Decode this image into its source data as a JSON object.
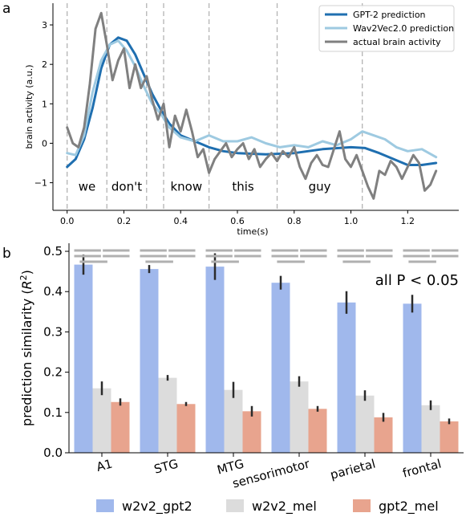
{
  "panel_labels": {
    "a": "a",
    "b": "b"
  },
  "chart_data": [
    {
      "type": "line",
      "xlabel": "time(s)",
      "ylabel": "brain activity (a.u.)",
      "xlim": [
        -0.05,
        1.38
      ],
      "ylim": [
        -1.7,
        3.55
      ],
      "xticks": [
        "0.0",
        "0.2",
        "0.4",
        "0.6",
        "0.8",
        "1.0",
        "1.2"
      ],
      "xtick_values": [
        0,
        0.2,
        0.4,
        0.6,
        0.8,
        1.0,
        1.2
      ],
      "yticks": [
        "−1",
        "0",
        "1",
        "2",
        "3"
      ],
      "ytick_values": [
        -1,
        0,
        1,
        2,
        3
      ],
      "legend_position": "top-right",
      "word_boundaries": [
        0,
        0.14,
        0.28,
        0.34,
        0.5,
        0.74,
        1.04
      ],
      "words": [
        {
          "text": "we",
          "x": 0.07
        },
        {
          "text": "don't",
          "x": 0.21
        },
        {
          "text": "know",
          "x": 0.42
        },
        {
          "text": "this",
          "x": 0.62
        },
        {
          "text": "guy",
          "x": 0.89
        }
      ],
      "series": [
        {
          "name": "GPT-2 prediction",
          "color": "#1f6fb0",
          "x": [
            0,
            0.03,
            0.06,
            0.09,
            0.12,
            0.15,
            0.18,
            0.21,
            0.24,
            0.27,
            0.3,
            0.33,
            0.36,
            0.4,
            0.45,
            0.5,
            0.55,
            0.6,
            0.7,
            0.8,
            0.9,
            1.0,
            1.05,
            1.1,
            1.15,
            1.2,
            1.25,
            1.3
          ],
          "y": [
            -0.6,
            -0.4,
            0.1,
            0.9,
            1.9,
            2.5,
            2.68,
            2.6,
            2.25,
            1.75,
            1.25,
            0.85,
            0.5,
            0.2,
            0.05,
            -0.1,
            -0.2,
            -0.25,
            -0.28,
            -0.25,
            -0.15,
            -0.1,
            -0.12,
            -0.25,
            -0.4,
            -0.55,
            -0.55,
            -0.5
          ]
        },
        {
          "name": "Wav2Vec2.0 prediction",
          "color": "#9ecae1",
          "x": [
            0,
            0.03,
            0.06,
            0.09,
            0.12,
            0.15,
            0.18,
            0.21,
            0.24,
            0.27,
            0.3,
            0.33,
            0.36,
            0.4,
            0.45,
            0.5,
            0.55,
            0.6,
            0.65,
            0.7,
            0.75,
            0.8,
            0.85,
            0.9,
            0.95,
            1.0,
            1.04,
            1.08,
            1.12,
            1.16,
            1.2,
            1.25,
            1.3
          ],
          "y": [
            -0.25,
            -0.3,
            0.2,
            1.3,
            2.1,
            2.5,
            2.6,
            2.35,
            1.95,
            1.45,
            1.0,
            0.75,
            0.4,
            0.15,
            0.05,
            0.2,
            0.05,
            0.05,
            0.15,
            0.0,
            -0.1,
            -0.05,
            -0.1,
            0.05,
            -0.05,
            0.1,
            0.3,
            0.2,
            0.1,
            -0.1,
            -0.2,
            -0.15,
            -0.35
          ]
        },
        {
          "name": "actual brain activity",
          "color": "#808080",
          "x": [
            0,
            0.02,
            0.04,
            0.06,
            0.08,
            0.1,
            0.12,
            0.14,
            0.16,
            0.18,
            0.2,
            0.22,
            0.24,
            0.26,
            0.28,
            0.3,
            0.32,
            0.34,
            0.36,
            0.38,
            0.4,
            0.42,
            0.44,
            0.46,
            0.48,
            0.5,
            0.52,
            0.54,
            0.56,
            0.58,
            0.6,
            0.62,
            0.64,
            0.66,
            0.68,
            0.7,
            0.72,
            0.74,
            0.76,
            0.78,
            0.8,
            0.82,
            0.84,
            0.86,
            0.88,
            0.9,
            0.92,
            0.94,
            0.96,
            0.98,
            1.0,
            1.02,
            1.04,
            1.06,
            1.08,
            1.1,
            1.12,
            1.14,
            1.16,
            1.18,
            1.2,
            1.22,
            1.24,
            1.26,
            1.28,
            1.3
          ],
          "y": [
            0.4,
            0.0,
            -0.1,
            0.4,
            1.5,
            2.9,
            3.3,
            2.5,
            1.6,
            2.1,
            2.4,
            1.4,
            2.0,
            1.4,
            1.7,
            1.1,
            0.6,
            1.0,
            -0.1,
            0.7,
            0.3,
            0.85,
            0.3,
            -0.35,
            -0.15,
            -0.75,
            -0.4,
            -0.2,
            0.0,
            -0.35,
            -0.15,
            0.0,
            -0.4,
            -0.15,
            -0.6,
            -0.4,
            -0.25,
            -0.45,
            -0.2,
            -0.35,
            -0.1,
            -0.6,
            -0.9,
            -0.5,
            -0.3,
            -0.55,
            -0.6,
            -0.15,
            0.3,
            -0.4,
            -0.6,
            -0.3,
            -0.7,
            -1.1,
            -1.4,
            -0.7,
            -0.8,
            -0.45,
            -0.6,
            -0.9,
            -0.6,
            -0.3,
            -0.5,
            -1.2,
            -1.05,
            -0.7
          ]
        }
      ]
    },
    {
      "type": "bar",
      "categories": [
        "A1",
        "STG",
        "MTG",
        "sensorimotor",
        "parietal",
        "frontal"
      ],
      "ylabel": "prediction similarity (R²)",
      "ylabel_main": "prediction similarity (",
      "ylabel_r": "R",
      "ylabel_sup": "2",
      "ylabel_close": ")",
      "ylim": [
        0,
        0.52
      ],
      "yticks": [
        "0.0",
        "0.1",
        "0.2",
        "0.3",
        "0.4",
        "0.5"
      ],
      "ytick_values": [
        0,
        0.1,
        0.2,
        0.3,
        0.4,
        0.5
      ],
      "annotation": "all P < 0.05",
      "legend_position": "bottom",
      "series": [
        {
          "name": "w2v2_gpt2",
          "color": "#a0b8ec",
          "values": [
            0.467,
            0.456,
            0.462,
            0.422,
            0.373,
            0.37
          ],
          "errors": [
            0.025,
            0.01,
            0.033,
            0.017,
            0.028,
            0.022
          ]
        },
        {
          "name": "w2v2_mel",
          "color": "#dcdcdc",
          "values": [
            0.16,
            0.186,
            0.156,
            0.177,
            0.142,
            0.118
          ],
          "errors": [
            0.017,
            0.007,
            0.02,
            0.013,
            0.013,
            0.012
          ]
        },
        {
          "name": "gpt2_mel",
          "color": "#e8a48e",
          "values": [
            0.126,
            0.121,
            0.103,
            0.109,
            0.088,
            0.078
          ],
          "errors": [
            0.009,
            0.005,
            0.013,
            0.007,
            0.011,
            0.007
          ]
        }
      ]
    }
  ]
}
